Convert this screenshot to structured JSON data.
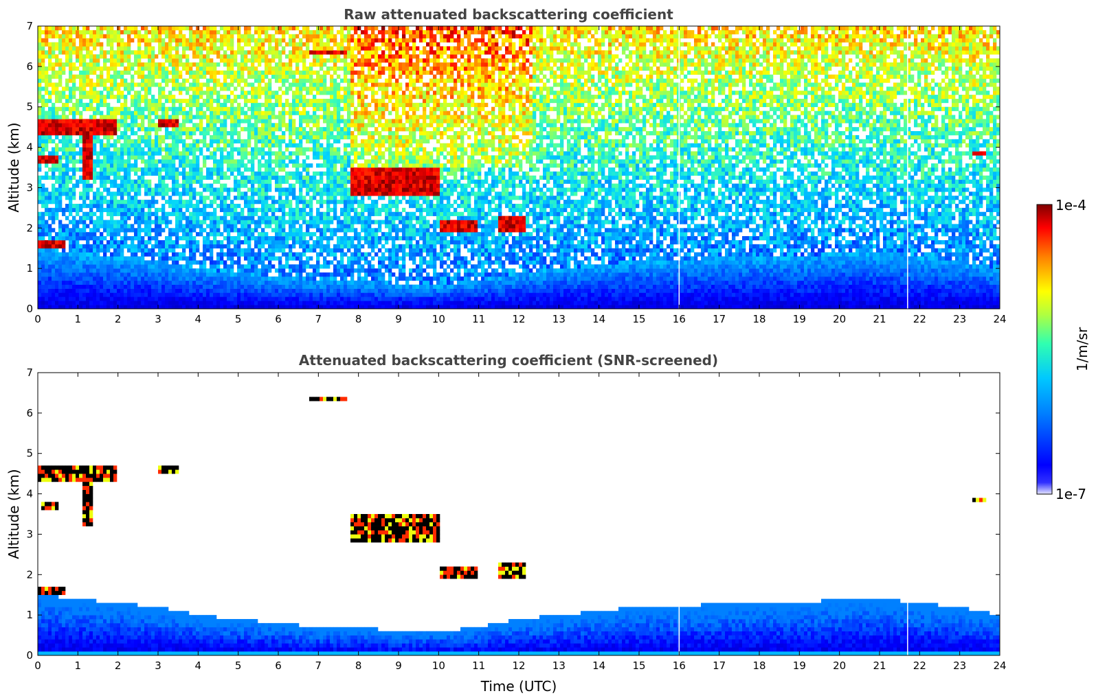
{
  "chart_data": [
    {
      "type": "heatmap",
      "title": "Raw attenuated backscattering coefficient",
      "xlabel": "",
      "ylabel": "Altitude (km)",
      "xlim": [
        0,
        24
      ],
      "ylim": [
        0,
        7
      ],
      "xticks": [
        "0",
        "1",
        "2",
        "3",
        "4",
        "5",
        "6",
        "7",
        "8",
        "9",
        "10",
        "11",
        "12",
        "13",
        "14",
        "15",
        "16",
        "17",
        "18",
        "19",
        "20",
        "21",
        "22",
        "23",
        "24"
      ],
      "yticks": [
        "0",
        "1",
        "2",
        "3",
        "4",
        "5",
        "6",
        "7"
      ],
      "grid": false,
      "layers": [
        {
          "kind": "cloud",
          "t_start": 0.0,
          "t_end": 2.0,
          "altitude": [
            4.3,
            4.7
          ]
        },
        {
          "kind": "virga",
          "t_start": 1.1,
          "t_end": 1.4,
          "altitude": [
            3.2,
            4.4
          ]
        },
        {
          "kind": "cloud",
          "t_start": 0.0,
          "t_end": 0.5,
          "altitude": [
            3.6,
            3.8
          ]
        },
        {
          "kind": "cloud",
          "t_start": 0.0,
          "t_end": 0.7,
          "altitude": [
            1.5,
            1.7
          ]
        },
        {
          "kind": "cloud",
          "t_start": 3.0,
          "t_end": 3.5,
          "altitude": [
            4.5,
            4.7
          ]
        },
        {
          "kind": "cloud",
          "t_start": 6.8,
          "t_end": 7.7,
          "altitude": [
            6.3,
            6.4
          ]
        },
        {
          "kind": "cloud",
          "t_start": 7.8,
          "t_end": 10.0,
          "altitude": [
            2.8,
            3.5
          ]
        },
        {
          "kind": "cloud",
          "t_start": 10.0,
          "t_end": 11.0,
          "altitude": [
            1.9,
            2.2
          ]
        },
        {
          "kind": "cloud",
          "t_start": 11.5,
          "t_end": 12.2,
          "altitude": [
            1.9,
            2.3
          ]
        },
        {
          "kind": "cloud",
          "t_start": 23.3,
          "t_end": 23.7,
          "altitude": [
            3.8,
            3.9
          ]
        }
      ],
      "boundary_layer": {
        "top_km": [
          1.5,
          1.4,
          1.3,
          1.2,
          1.0,
          0.9,
          0.8,
          0.7,
          0.7,
          0.6,
          0.6,
          0.7,
          0.9,
          1.0,
          1.1,
          1.2,
          1.2,
          1.3,
          1.3,
          1.3,
          1.4,
          1.4,
          1.3,
          1.2,
          1.0
        ]
      },
      "gaps_utc": [
        16.0,
        21.7
      ]
    },
    {
      "type": "heatmap",
      "title": "Attenuated backscattering coefficient (SNR-screened)",
      "xlabel": "Time (UTC)",
      "ylabel": "Altitude (km)",
      "xlim": [
        0,
        24
      ],
      "ylim": [
        0,
        7
      ],
      "xticks": [
        "0",
        "1",
        "2",
        "3",
        "4",
        "5",
        "6",
        "7",
        "8",
        "9",
        "10",
        "11",
        "12",
        "13",
        "14",
        "15",
        "16",
        "17",
        "18",
        "19",
        "20",
        "21",
        "22",
        "23",
        "24"
      ],
      "yticks": [
        "0",
        "1",
        "2",
        "3",
        "4",
        "5",
        "6",
        "7"
      ],
      "grid": false,
      "layers": [
        {
          "kind": "cloud",
          "t_start": 0.0,
          "t_end": 2.0,
          "altitude": [
            4.3,
            4.7
          ]
        },
        {
          "kind": "virga",
          "t_start": 1.1,
          "t_end": 1.4,
          "altitude": [
            3.2,
            4.4
          ]
        },
        {
          "kind": "cloud",
          "t_start": 0.1,
          "t_end": 0.5,
          "altitude": [
            3.6,
            3.8
          ]
        },
        {
          "kind": "cloud",
          "t_start": 0.0,
          "t_end": 0.7,
          "altitude": [
            1.5,
            1.7
          ]
        },
        {
          "kind": "cloud",
          "t_start": 3.0,
          "t_end": 3.5,
          "altitude": [
            4.5,
            4.7
          ]
        },
        {
          "kind": "cloud",
          "t_start": 6.8,
          "t_end": 7.7,
          "altitude": [
            6.3,
            6.4
          ]
        },
        {
          "kind": "cloud",
          "t_start": 7.8,
          "t_end": 10.0,
          "altitude": [
            2.8,
            3.5
          ]
        },
        {
          "kind": "cloud",
          "t_start": 10.0,
          "t_end": 11.0,
          "altitude": [
            1.9,
            2.2
          ]
        },
        {
          "kind": "cloud",
          "t_start": 11.5,
          "t_end": 12.2,
          "altitude": [
            1.9,
            2.3
          ]
        },
        {
          "kind": "cloud",
          "t_start": 23.3,
          "t_end": 23.7,
          "altitude": [
            3.8,
            3.9
          ]
        }
      ],
      "boundary_layer": {
        "top_km": [
          1.5,
          1.4,
          1.3,
          1.2,
          1.0,
          0.9,
          0.8,
          0.7,
          0.7,
          0.6,
          0.6,
          0.7,
          0.9,
          1.0,
          1.1,
          1.2,
          1.2,
          1.3,
          1.3,
          1.3,
          1.4,
          1.4,
          1.3,
          1.2,
          1.0
        ]
      },
      "gaps_utc": [
        16.0,
        21.7
      ]
    }
  ],
  "colorbar": {
    "label": "1/m/sr",
    "max_label": "1e-4",
    "min_label": "1e-7",
    "scale": "log",
    "colormap": "jet",
    "colors": [
      "#ffffff",
      "#0000ff",
      "#00c8ff",
      "#00ff80",
      "#ffff00",
      "#ff8000",
      "#ff0000",
      "#800000"
    ]
  }
}
